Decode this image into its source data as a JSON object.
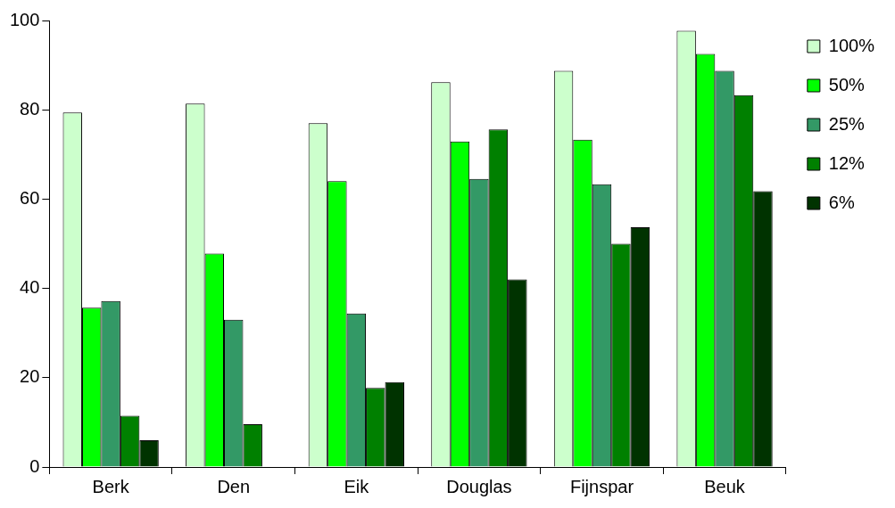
{
  "chart_data": {
    "type": "bar",
    "categories": [
      "Berk",
      "Den",
      "Eik",
      "Douglas",
      "Fijnspar",
      "Beuk"
    ],
    "series": [
      {
        "name": "100%",
        "color": "#ccffcc",
        "values": [
          79.4,
          81.4,
          77,
          86.2,
          88.7,
          97.7
        ]
      },
      {
        "name": "50%",
        "color": "#00ff00",
        "values": [
          35.7,
          47.8,
          64,
          72.9,
          73.3,
          92.5
        ]
      },
      {
        "name": "25%",
        "color": "#339966",
        "values": [
          37.2,
          33,
          34.4,
          64.5,
          63.3,
          88.7
        ]
      },
      {
        "name": "12%",
        "color": "#008000",
        "values": [
          11.5,
          9.6,
          17.7,
          75.6,
          50,
          83.3
        ]
      },
      {
        "name": "6%",
        "color": "#003300",
        "values": [
          6,
          null,
          19,
          42,
          53.7,
          61.8
        ]
      }
    ],
    "ylim": [
      0,
      100
    ],
    "yticks": [
      0,
      20,
      40,
      60,
      80,
      100
    ],
    "grid": false,
    "legend": "top right"
  }
}
